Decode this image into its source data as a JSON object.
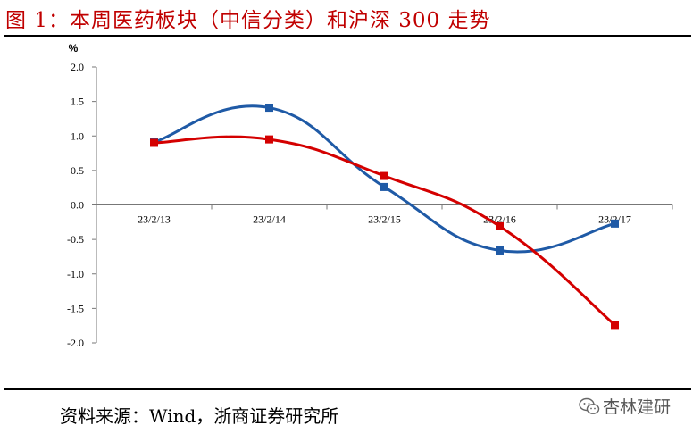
{
  "title": "图 1：本周医药板块（中信分类）和沪深 300 走势",
  "source": "资料来源：Wind，浙商证券研究所",
  "watermark": "杏林建研",
  "colors": {
    "title": "#c00000",
    "series_a": "#1f5aa6",
    "series_b": "#d40000"
  },
  "chart_data": {
    "type": "line",
    "ylabel": "%",
    "ylim": [
      -2.0,
      2.0
    ],
    "yticks": [
      "2.0",
      "1.5",
      "1.0",
      "0.5",
      "0.0",
      "-0.5",
      "-1.0",
      "-1.5",
      "-2.0"
    ],
    "categories": [
      "23/2/13",
      "23/2/14",
      "23/2/15",
      "23/2/16",
      "23/2/17"
    ],
    "grid": false,
    "legend": "none",
    "series": [
      {
        "color": "#1f5aa6",
        "marker": "square",
        "values": [
          0.91,
          1.41,
          0.26,
          -0.66,
          -0.27
        ]
      },
      {
        "color": "#d40000",
        "marker": "square",
        "values": [
          0.9,
          0.95,
          0.42,
          -0.31,
          -1.74
        ]
      }
    ]
  }
}
